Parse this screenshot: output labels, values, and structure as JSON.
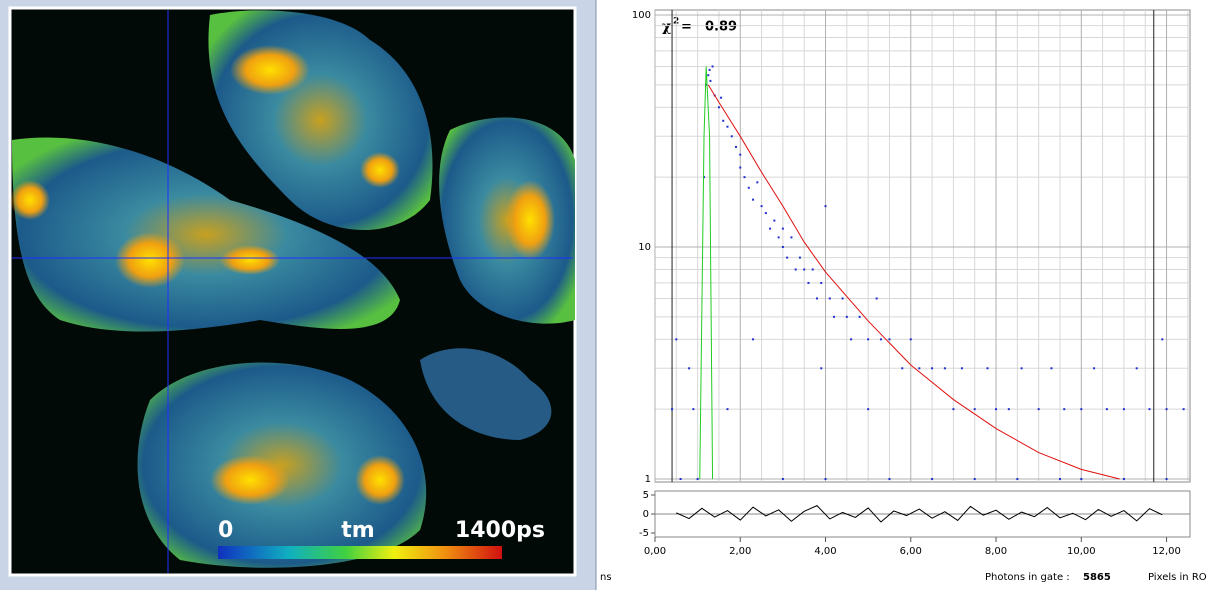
{
  "image": {
    "colorbar": {
      "min_label": "0",
      "title": "tm",
      "max_label": "1400ps"
    }
  },
  "chart_data": [
    {
      "type": "scatter",
      "log_y": true,
      "grid": true,
      "xlim": [
        0,
        12.55
      ],
      "ylim": [
        1,
        100
      ],
      "xticks": [
        {
          "value": 0,
          "label": "0,00"
        },
        {
          "value": 2,
          "label": "2,00"
        },
        {
          "value": 4,
          "label": "4,00"
        },
        {
          "value": 6,
          "label": "6,00"
        },
        {
          "value": 8,
          "label": "8,00"
        },
        {
          "value": 10,
          "label": "10,00"
        },
        {
          "value": 12,
          "label": "12,00"
        }
      ],
      "minor_xticks": [
        0.5,
        1,
        1.5,
        2.5,
        3,
        3.5,
        4.5,
        5,
        5.5,
        6.5,
        7,
        7.5,
        8.5,
        9,
        9.5,
        10.5,
        11,
        11.5,
        12.5
      ],
      "yticks": [
        1,
        10,
        100
      ],
      "minor_yticks": [
        2,
        3,
        4,
        5,
        6,
        7,
        8,
        9,
        20,
        30,
        40,
        50,
        60,
        70,
        80,
        90
      ],
      "markers": [
        0.4,
        11.7
      ],
      "annotation": {
        "symbol": "χ",
        "exponent": "2",
        "sign": "=",
        "value": 0.89
      },
      "series": [
        {
          "type": "scatter",
          "color": "#1f2fd0",
          "x": [
            1.15,
            1.2,
            1.25,
            1.28,
            1.3,
            1.35,
            1.4,
            1.5,
            1.55,
            1.6,
            1.7,
            1.8,
            1.9,
            2.0,
            2.0,
            2.1,
            2.2,
            2.3,
            2.4,
            2.5,
            2.6,
            2.7,
            2.8,
            2.9,
            3.0,
            3.0,
            3.1,
            3.2,
            3.3,
            3.4,
            3.5,
            3.6,
            3.7,
            3.8,
            3.9,
            4.0,
            4.1,
            4.2,
            4.4,
            4.5,
            4.6,
            4.8,
            5.0,
            5.2,
            5.3,
            5.5,
            5.8,
            6.0,
            6.2,
            6.5,
            6.8,
            7.0,
            7.2,
            7.5,
            7.8,
            8.0,
            8.3,
            8.6,
            9.0,
            9.3,
            9.6,
            10.0,
            10.3,
            10.6,
            11.0,
            11.3,
            11.6,
            12.0,
            12.4,
            0.4,
            0.5,
            0.8,
            0.9,
            2.3,
            1.7,
            5.5,
            6.5,
            8.5,
            9.5,
            11.0,
            0.6,
            1.0,
            3.0,
            4.0,
            7.5,
            10.0,
            12.0,
            11.9,
            5.0,
            3.9
          ],
          "values": [
            20,
            50,
            55,
            58,
            52,
            60,
            45,
            40,
            44,
            35,
            33,
            30,
            27,
            25,
            22,
            20,
            18,
            16,
            19,
            15,
            14,
            12,
            13,
            11,
            10,
            12,
            9,
            11,
            8,
            9,
            8,
            7,
            8,
            6,
            7,
            15,
            6,
            5,
            6,
            5,
            4,
            5,
            4,
            6,
            4,
            4,
            3,
            4,
            3,
            3,
            3,
            2,
            3,
            2,
            3,
            2,
            2,
            3,
            2,
            3,
            2,
            2,
            3,
            2,
            2,
            3,
            2,
            2,
            2,
            2,
            4,
            3,
            2,
            4,
            2,
            1,
            1,
            1,
            1,
            1,
            1,
            1,
            1,
            1,
            1,
            1,
            1,
            4,
            2,
            3
          ]
        },
        {
          "type": "line",
          "color": "#e01010",
          "x": [
            1.25,
            1.5,
            2,
            2.5,
            3,
            3.5,
            4,
            5,
            6,
            7,
            8,
            9,
            10,
            10.9
          ],
          "values": [
            50,
            42,
            30,
            21,
            15,
            10.5,
            7.8,
            4.8,
            3.1,
            2.2,
            1.65,
            1.3,
            1.1,
            1.0
          ]
        },
        {
          "type": "line",
          "color": "#22cc22",
          "x": [
            1.05,
            1.15,
            1.2,
            1.28,
            1.35
          ],
          "values": [
            1,
            30,
            60,
            30,
            1
          ]
        }
      ]
    },
    {
      "type": "line",
      "xlim": [
        0,
        12.55
      ],
      "ylim": [
        -5,
        5
      ],
      "yticks": [
        5,
        0,
        -5
      ],
      "series": [
        {
          "color": "#000000",
          "x": [
            0.5,
            0.8,
            1.1,
            1.4,
            1.7,
            2.0,
            2.3,
            2.6,
            2.9,
            3.2,
            3.5,
            3.8,
            4.1,
            4.4,
            4.7,
            5.0,
            5.3,
            5.6,
            5.9,
            6.2,
            6.5,
            6.8,
            7.1,
            7.4,
            7.7,
            8.0,
            8.3,
            8.6,
            8.9,
            9.2,
            9.5,
            9.8,
            10.1,
            10.4,
            10.7,
            11.0,
            11.3,
            11.6,
            11.9
          ],
          "values": [
            0.3,
            -1.2,
            1.5,
            -0.8,
            0.9,
            -1.6,
            1.8,
            -0.5,
            1.1,
            -1.9,
            0.7,
            2.2,
            -1.3,
            0.4,
            -0.9,
            1.6,
            -2.1,
            0.8,
            -0.4,
            1.3,
            -1.1,
            0.6,
            -1.7,
            2.0,
            -0.3,
            1.0,
            -1.4,
            0.5,
            -0.7,
            1.7,
            -1.0,
            0.2,
            -1.5,
            1.2,
            -0.6,
            0.9,
            -1.8,
            1.4,
            -0.2
          ]
        }
      ]
    }
  ],
  "status_bar": {
    "unit": "ns",
    "photons_label": "Photons in gate :",
    "photons": 5865,
    "pixels_label": "Pixels in RO"
  }
}
